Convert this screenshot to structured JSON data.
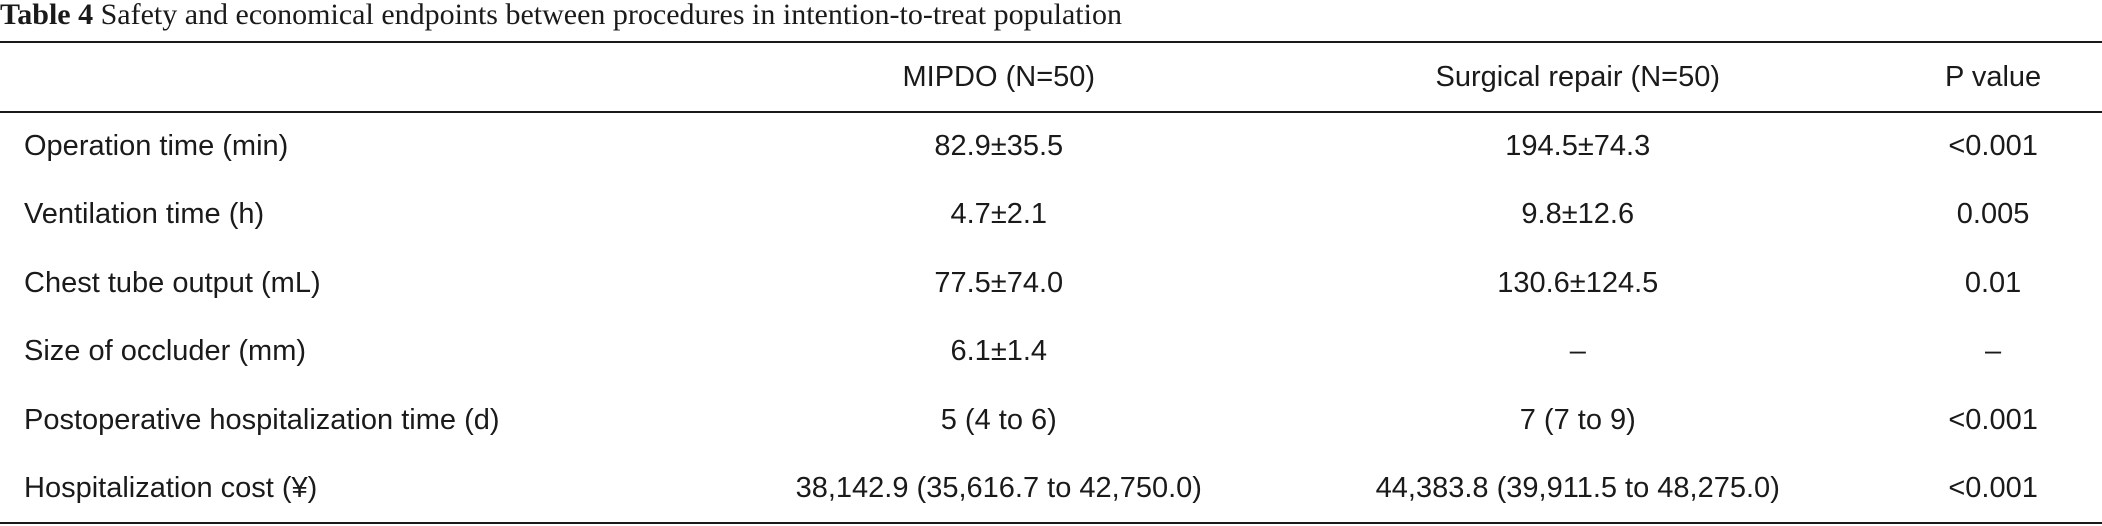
{
  "caption": {
    "label": "Table 4",
    "text": " Safety and economical endpoints between procedures in intention-to-treat population"
  },
  "table": {
    "headers": [
      "",
      "MIPDO (N=50)",
      "Surgical repair (N=50)",
      "P value"
    ],
    "rows": [
      [
        "Operation time (min)",
        "82.9±35.5",
        "194.5±74.3",
        "<0.001"
      ],
      [
        "Ventilation time (h)",
        "4.7±2.1",
        "9.8±12.6",
        "0.005"
      ],
      [
        "Chest tube output (mL)",
        "77.5±74.0",
        "130.6±124.5",
        "0.01"
      ],
      [
        "Size of occluder (mm)",
        "6.1±1.4",
        "–",
        "–"
      ],
      [
        "Postoperative hospitalization time (d)",
        "5 (4 to 6)",
        "7 (7 to 9)",
        "<0.001"
      ],
      [
        "Hospitalization cost (¥)",
        "38,142.9 (35,616.7 to 42,750.0)",
        "44,383.8 (39,911.5 to 48,275.0)",
        "<0.001"
      ]
    ]
  }
}
